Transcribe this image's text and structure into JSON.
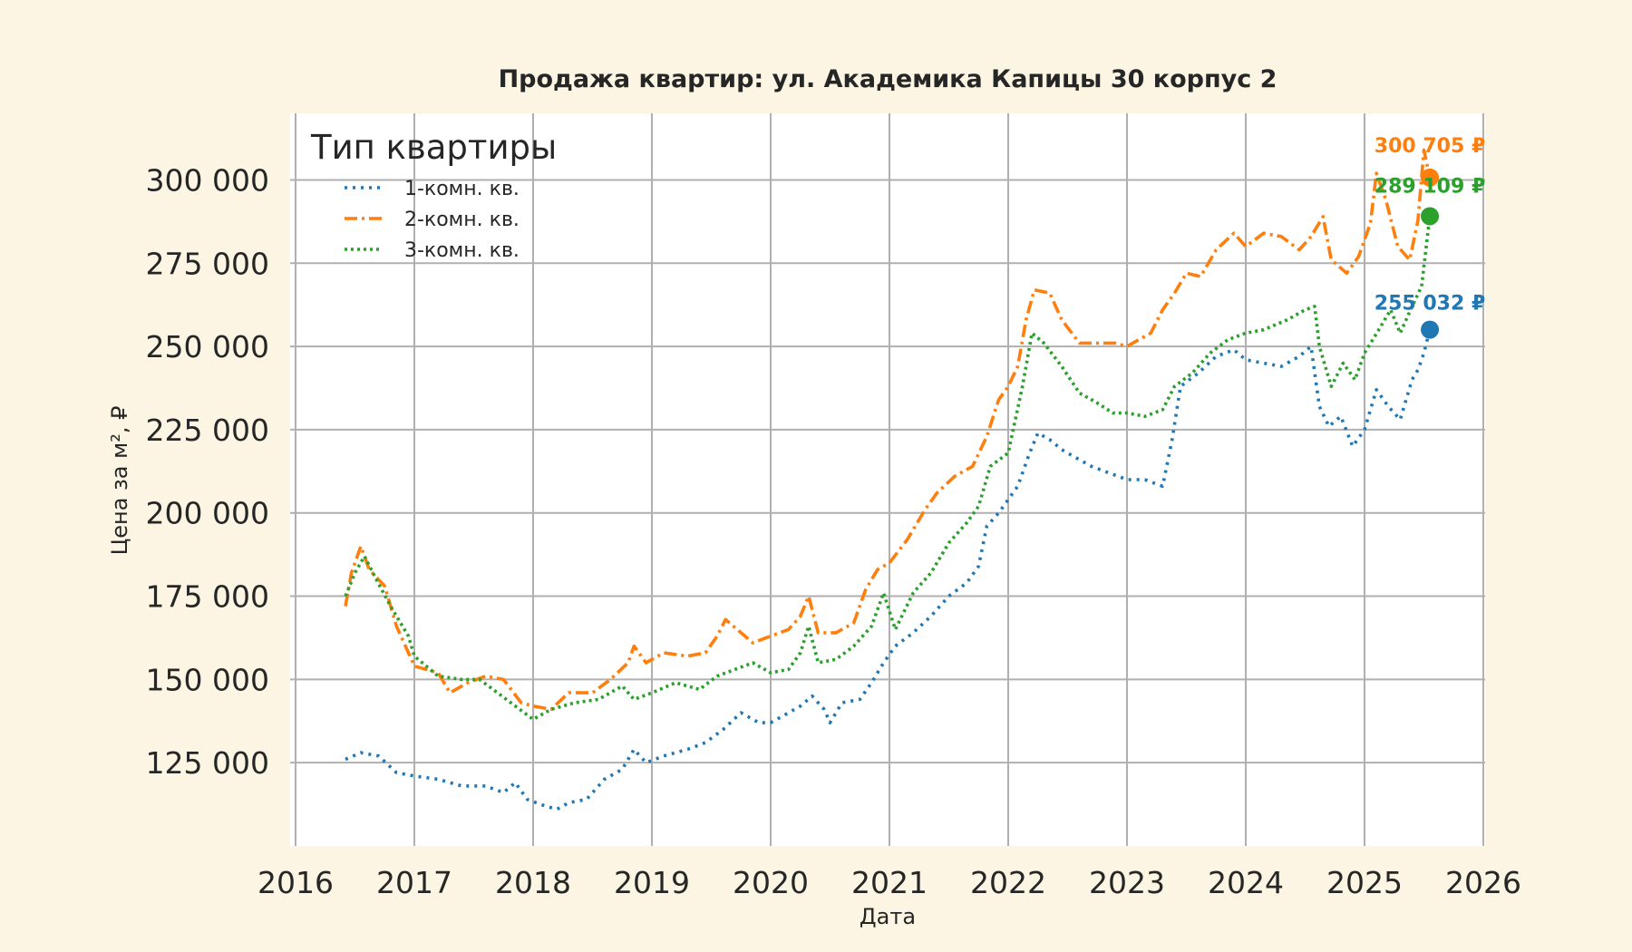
{
  "chart_data": {
    "type": "line",
    "title": "Продажа квартир: ул. Академика Капицы 30 корпус 2",
    "xlabel": "Дата",
    "ylabel": "Цена за м², ₽",
    "xlim": [
      2016.0,
      2026.0
    ],
    "ylim": [
      100000,
      320000
    ],
    "x_ticks": [
      "2016",
      "2017",
      "2018",
      "2019",
      "2020",
      "2021",
      "2022",
      "2023",
      "2024",
      "2025",
      "2026"
    ],
    "y_ticks": [
      {
        "value": 125000,
        "label": "125 000"
      },
      {
        "value": 150000,
        "label": "150 000"
      },
      {
        "value": 175000,
        "label": "175 000"
      },
      {
        "value": 200000,
        "label": "200 000"
      },
      {
        "value": 225000,
        "label": "225 000"
      },
      {
        "value": 250000,
        "label": "250 000"
      },
      {
        "value": 275000,
        "label": "275 000"
      },
      {
        "value": 300000,
        "label": "300 000"
      }
    ],
    "grid": true,
    "legend": {
      "title": "Тип квартиры",
      "placement": "top-left"
    },
    "series": [
      {
        "name": "1-комн. кв.",
        "color": "#1f77b4",
        "dash": "3,6",
        "end_label": "255 032 ₽",
        "end_point": [
          2025.55,
          255032
        ],
        "points": [
          [
            2016.42,
            126000
          ],
          [
            2016.55,
            128000
          ],
          [
            2016.7,
            127000
          ],
          [
            2016.85,
            122000
          ],
          [
            2017.0,
            121000
          ],
          [
            2017.2,
            120000
          ],
          [
            2017.4,
            118000
          ],
          [
            2017.6,
            118000
          ],
          [
            2017.75,
            116000
          ],
          [
            2017.85,
            119000
          ],
          [
            2017.95,
            114000
          ],
          [
            2018.1,
            112000
          ],
          [
            2018.2,
            111000
          ],
          [
            2018.3,
            113000
          ],
          [
            2018.45,
            114000
          ],
          [
            2018.6,
            120000
          ],
          [
            2018.75,
            123000
          ],
          [
            2018.85,
            129000
          ],
          [
            2018.95,
            125000
          ],
          [
            2019.1,
            127000
          ],
          [
            2019.3,
            129000
          ],
          [
            2019.45,
            131000
          ],
          [
            2019.6,
            135000
          ],
          [
            2019.75,
            140000
          ],
          [
            2019.9,
            137000
          ],
          [
            2020.0,
            137000
          ],
          [
            2020.1,
            139000
          ],
          [
            2020.25,
            142000
          ],
          [
            2020.35,
            145000
          ],
          [
            2020.45,
            141000
          ],
          [
            2020.5,
            137000
          ],
          [
            2020.6,
            143000
          ],
          [
            2020.75,
            144000
          ],
          [
            2020.85,
            149000
          ],
          [
            2020.95,
            155000
          ],
          [
            2021.05,
            160000
          ],
          [
            2021.2,
            164000
          ],
          [
            2021.35,
            169000
          ],
          [
            2021.5,
            175000
          ],
          [
            2021.65,
            179000
          ],
          [
            2021.75,
            184000
          ],
          [
            2021.82,
            196000
          ],
          [
            2021.92,
            200000
          ],
          [
            2022.0,
            204000
          ],
          [
            2022.08,
            208000
          ],
          [
            2022.18,
            218000
          ],
          [
            2022.25,
            224000
          ],
          [
            2022.35,
            222000
          ],
          [
            2022.45,
            219000
          ],
          [
            2022.55,
            217000
          ],
          [
            2022.7,
            214000
          ],
          [
            2022.85,
            212000
          ],
          [
            2023.0,
            210000
          ],
          [
            2023.15,
            210000
          ],
          [
            2023.3,
            208000
          ],
          [
            2023.38,
            222000
          ],
          [
            2023.45,
            238000
          ],
          [
            2023.6,
            242000
          ],
          [
            2023.75,
            247000
          ],
          [
            2023.9,
            249000
          ],
          [
            2024.0,
            246000
          ],
          [
            2024.15,
            245000
          ],
          [
            2024.3,
            244000
          ],
          [
            2024.45,
            247000
          ],
          [
            2024.55,
            250000
          ],
          [
            2024.62,
            232000
          ],
          [
            2024.7,
            226000
          ],
          [
            2024.8,
            229000
          ],
          [
            2024.9,
            220000
          ],
          [
            2025.0,
            225000
          ],
          [
            2025.1,
            237000
          ],
          [
            2025.2,
            232000
          ],
          [
            2025.3,
            228000
          ],
          [
            2025.4,
            240000
          ],
          [
            2025.45,
            243000
          ],
          [
            2025.5,
            248000
          ],
          [
            2025.55,
            255032
          ]
        ]
      },
      {
        "name": "2-комн. кв.",
        "color": "#ff7f0e",
        "dash": "14,5,3,5",
        "end_label": "300 705 ₽",
        "end_point": [
          2025.55,
          300705
        ],
        "points": [
          [
            2016.42,
            172000
          ],
          [
            2016.47,
            182000
          ],
          [
            2016.55,
            190000
          ],
          [
            2016.62,
            183000
          ],
          [
            2016.75,
            178000
          ],
          [
            2016.85,
            166000
          ],
          [
            2016.95,
            158000
          ],
          [
            2017.0,
            154000
          ],
          [
            2017.2,
            152000
          ],
          [
            2017.3,
            146000
          ],
          [
            2017.45,
            149000
          ],
          [
            2017.6,
            151000
          ],
          [
            2017.75,
            150000
          ],
          [
            2017.9,
            143000
          ],
          [
            2018.0,
            142000
          ],
          [
            2018.15,
            141000
          ],
          [
            2018.3,
            146000
          ],
          [
            2018.5,
            146000
          ],
          [
            2018.65,
            150000
          ],
          [
            2018.8,
            155000
          ],
          [
            2018.85,
            160000
          ],
          [
            2018.95,
            155000
          ],
          [
            2019.1,
            158000
          ],
          [
            2019.3,
            157000
          ],
          [
            2019.45,
            158000
          ],
          [
            2019.55,
            163000
          ],
          [
            2019.62,
            168000
          ],
          [
            2019.75,
            164000
          ],
          [
            2019.85,
            161000
          ],
          [
            2020.0,
            163000
          ],
          [
            2020.15,
            165000
          ],
          [
            2020.25,
            169000
          ],
          [
            2020.32,
            175000
          ],
          [
            2020.4,
            164000
          ],
          [
            2020.55,
            164000
          ],
          [
            2020.7,
            167000
          ],
          [
            2020.8,
            177000
          ],
          [
            2020.9,
            183000
          ],
          [
            2021.0,
            185000
          ],
          [
            2021.15,
            192000
          ],
          [
            2021.3,
            201000
          ],
          [
            2021.4,
            206000
          ],
          [
            2021.55,
            211000
          ],
          [
            2021.7,
            214000
          ],
          [
            2021.82,
            223000
          ],
          [
            2021.92,
            234000
          ],
          [
            2022.0,
            238000
          ],
          [
            2022.08,
            244000
          ],
          [
            2022.15,
            258000
          ],
          [
            2022.22,
            267000
          ],
          [
            2022.35,
            266000
          ],
          [
            2022.45,
            258000
          ],
          [
            2022.6,
            251000
          ],
          [
            2022.75,
            251000
          ],
          [
            2022.9,
            251000
          ],
          [
            2023.0,
            250000
          ],
          [
            2023.1,
            252000
          ],
          [
            2023.2,
            254000
          ],
          [
            2023.3,
            261000
          ],
          [
            2023.4,
            266000
          ],
          [
            2023.5,
            272000
          ],
          [
            2023.62,
            271000
          ],
          [
            2023.75,
            279000
          ],
          [
            2023.9,
            284000
          ],
          [
            2024.0,
            280000
          ],
          [
            2024.15,
            284000
          ],
          [
            2024.3,
            283000
          ],
          [
            2024.45,
            279000
          ],
          [
            2024.55,
            283000
          ],
          [
            2024.65,
            289000
          ],
          [
            2024.72,
            276000
          ],
          [
            2024.85,
            272000
          ],
          [
            2024.95,
            277000
          ],
          [
            2025.05,
            287000
          ],
          [
            2025.1,
            302000
          ],
          [
            2025.18,
            294000
          ],
          [
            2025.28,
            280000
          ],
          [
            2025.38,
            276000
          ],
          [
            2025.45,
            288000
          ],
          [
            2025.5,
            309000
          ],
          [
            2025.55,
            300705
          ]
        ]
      },
      {
        "name": "3-комн. кв.",
        "color": "#2ca02c",
        "dash": "3,4",
        "end_label": "289 109 ₽",
        "end_point": [
          2025.55,
          289109
        ],
        "points": [
          [
            2016.42,
            175000
          ],
          [
            2016.5,
            182000
          ],
          [
            2016.58,
            187000
          ],
          [
            2016.68,
            180000
          ],
          [
            2016.8,
            172000
          ],
          [
            2016.95,
            163000
          ],
          [
            2017.0,
            157000
          ],
          [
            2017.2,
            151000
          ],
          [
            2017.4,
            150000
          ],
          [
            2017.55,
            150000
          ],
          [
            2017.7,
            146000
          ],
          [
            2017.85,
            142000
          ],
          [
            2018.0,
            138000
          ],
          [
            2018.15,
            141000
          ],
          [
            2018.35,
            143000
          ],
          [
            2018.55,
            144000
          ],
          [
            2018.75,
            148000
          ],
          [
            2018.85,
            144000
          ],
          [
            2019.0,
            146000
          ],
          [
            2019.2,
            149000
          ],
          [
            2019.4,
            147000
          ],
          [
            2019.55,
            151000
          ],
          [
            2019.7,
            153000
          ],
          [
            2019.85,
            155000
          ],
          [
            2020.0,
            152000
          ],
          [
            2020.15,
            153000
          ],
          [
            2020.25,
            158000
          ],
          [
            2020.32,
            166000
          ],
          [
            2020.4,
            155000
          ],
          [
            2020.55,
            156000
          ],
          [
            2020.7,
            160000
          ],
          [
            2020.85,
            166000
          ],
          [
            2020.95,
            176000
          ],
          [
            2021.05,
            165000
          ],
          [
            2021.2,
            176000
          ],
          [
            2021.35,
            182000
          ],
          [
            2021.5,
            191000
          ],
          [
            2021.65,
            197000
          ],
          [
            2021.75,
            202000
          ],
          [
            2021.85,
            214000
          ],
          [
            2022.0,
            218000
          ],
          [
            2022.12,
            238000
          ],
          [
            2022.2,
            254000
          ],
          [
            2022.3,
            251000
          ],
          [
            2022.45,
            244000
          ],
          [
            2022.6,
            236000
          ],
          [
            2022.75,
            233000
          ],
          [
            2022.88,
            230000
          ],
          [
            2023.0,
            230000
          ],
          [
            2023.15,
            229000
          ],
          [
            2023.3,
            231000
          ],
          [
            2023.4,
            238000
          ],
          [
            2023.55,
            242000
          ],
          [
            2023.7,
            248000
          ],
          [
            2023.85,
            252000
          ],
          [
            2024.0,
            254000
          ],
          [
            2024.15,
            255000
          ],
          [
            2024.35,
            258000
          ],
          [
            2024.5,
            261000
          ],
          [
            2024.58,
            262000
          ],
          [
            2024.62,
            250000
          ],
          [
            2024.72,
            238000
          ],
          [
            2024.82,
            245000
          ],
          [
            2024.92,
            240000
          ],
          [
            2025.0,
            248000
          ],
          [
            2025.12,
            255000
          ],
          [
            2025.22,
            261000
          ],
          [
            2025.3,
            254000
          ],
          [
            2025.4,
            262000
          ],
          [
            2025.48,
            268000
          ],
          [
            2025.55,
            289109
          ]
        ]
      }
    ]
  }
}
